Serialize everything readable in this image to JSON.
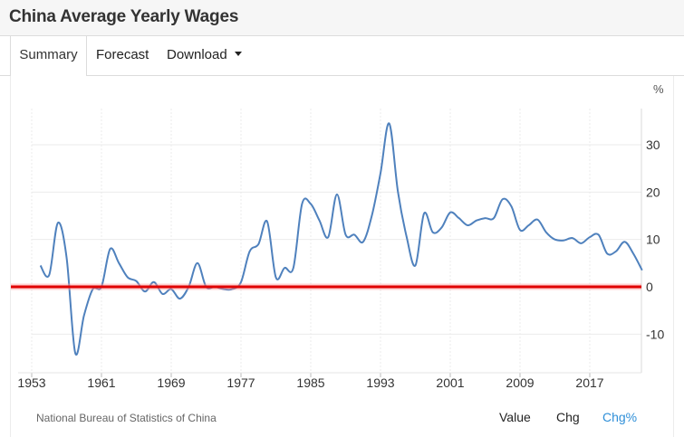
{
  "header": {
    "title": "China Average Yearly Wages"
  },
  "tabs": [
    {
      "label": "Summary"
    },
    {
      "label": "Forecast"
    },
    {
      "label": "Download"
    }
  ],
  "footer": {
    "source": "National Bureau of Statistics of China",
    "modes": [
      "Value",
      "Chg",
      "Chg%"
    ],
    "active_mode": "Chg%"
  },
  "colors": {
    "line": "#4f81bd",
    "zero_line": "#e00000",
    "active_mode": "#2f8fd8"
  },
  "chart_data": {
    "type": "line",
    "title": "China Average Yearly Wages",
    "ylabel": "%",
    "xlim": [
      1953,
      2023
    ],
    "ylim": [
      -16,
      38
    ],
    "y_ticks": [
      -10,
      0,
      10,
      20,
      30
    ],
    "x_ticks": [
      1953,
      1961,
      1969,
      1977,
      1985,
      1993,
      2001,
      2009,
      2017
    ],
    "grid": true,
    "highlight_line": 0,
    "series": [
      {
        "name": "Chg%",
        "x": [
          1954,
          1955,
          1956,
          1957,
          1958,
          1959,
          1960,
          1961,
          1962,
          1963,
          1964,
          1965,
          1966,
          1967,
          1968,
          1969,
          1970,
          1971,
          1972,
          1973,
          1974,
          1975,
          1976,
          1977,
          1978,
          1979,
          1980,
          1981,
          1982,
          1983,
          1984,
          1985,
          1986,
          1987,
          1988,
          1989,
          1990,
          1991,
          1992,
          1993,
          1994,
          1995,
          1996,
          1997,
          1998,
          1999,
          2000,
          2001,
          2002,
          2003,
          2004,
          2005,
          2006,
          2007,
          2008,
          2009,
          2010,
          2011,
          2012,
          2013,
          2014,
          2015,
          2016,
          2017,
          2018,
          2019,
          2020,
          2021,
          2022,
          2023
        ],
        "values": [
          4.5,
          2.5,
          13.5,
          6.2,
          -14,
          -6,
          -0.5,
          0,
          8,
          5,
          2,
          1.2,
          -1,
          1,
          -1.5,
          -0.5,
          -2.5,
          0,
          5,
          0,
          0,
          -0.5,
          -0.5,
          1,
          7.5,
          9,
          13.8,
          2,
          4,
          4,
          17.5,
          17.5,
          14,
          10.5,
          19.5,
          11,
          11,
          9.5,
          15,
          24,
          34.5,
          20,
          10.5,
          4.5,
          15.5,
          11.5,
          12.5,
          15.7,
          14.5,
          13,
          14,
          14.5,
          14.5,
          18.5,
          17,
          12,
          13,
          14.2,
          11.5,
          10,
          9.8,
          10.3,
          9.2,
          10.5,
          11,
          7,
          7.5,
          9.5,
          7,
          3.5
        ]
      }
    ]
  }
}
